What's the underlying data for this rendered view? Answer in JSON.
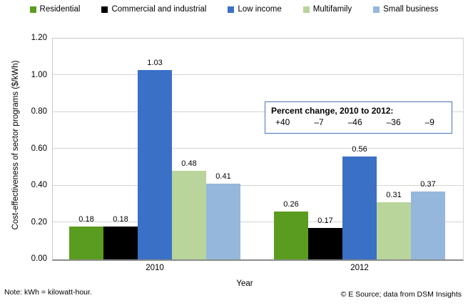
{
  "chart_data": {
    "type": "bar",
    "categories": [
      "2010",
      "2012"
    ],
    "series": [
      {
        "name": "Residential",
        "color": "#5A9C1F",
        "values": [
          0.18,
          0.26
        ]
      },
      {
        "name": "Commercial and industrial",
        "color": "#000000",
        "values": [
          0.18,
          0.17
        ]
      },
      {
        "name": "Low income",
        "color": "#3A70C6",
        "values": [
          1.03,
          0.56
        ]
      },
      {
        "name": "Multifamily",
        "color": "#B9D59B",
        "values": [
          0.48,
          0.31
        ]
      },
      {
        "name": "Small business",
        "color": "#95B7DC",
        "values": [
          0.41,
          0.37
        ]
      }
    ],
    "xlabel": "Year",
    "ylabel": "Cost-effectiveness of sector programs ($/kWh)",
    "ylim": [
      0,
      1.2
    ],
    "yticks": [
      "0.00",
      "0.20",
      "0.40",
      "0.60",
      "0.80",
      "1.00",
      "1.20"
    ],
    "grid": true,
    "legend_position": "top",
    "bar_label_format": "2dp"
  },
  "annotation": {
    "title": "Percent change, 2010 to 2012:",
    "values": [
      "+40",
      "–7",
      "–46",
      "–36",
      "–9"
    ],
    "border_color": "#4577B8"
  },
  "footer": {
    "note": "Note: kWh = kilowatt-hour.",
    "credit": "© E Source; data from  DSM Insights"
  }
}
